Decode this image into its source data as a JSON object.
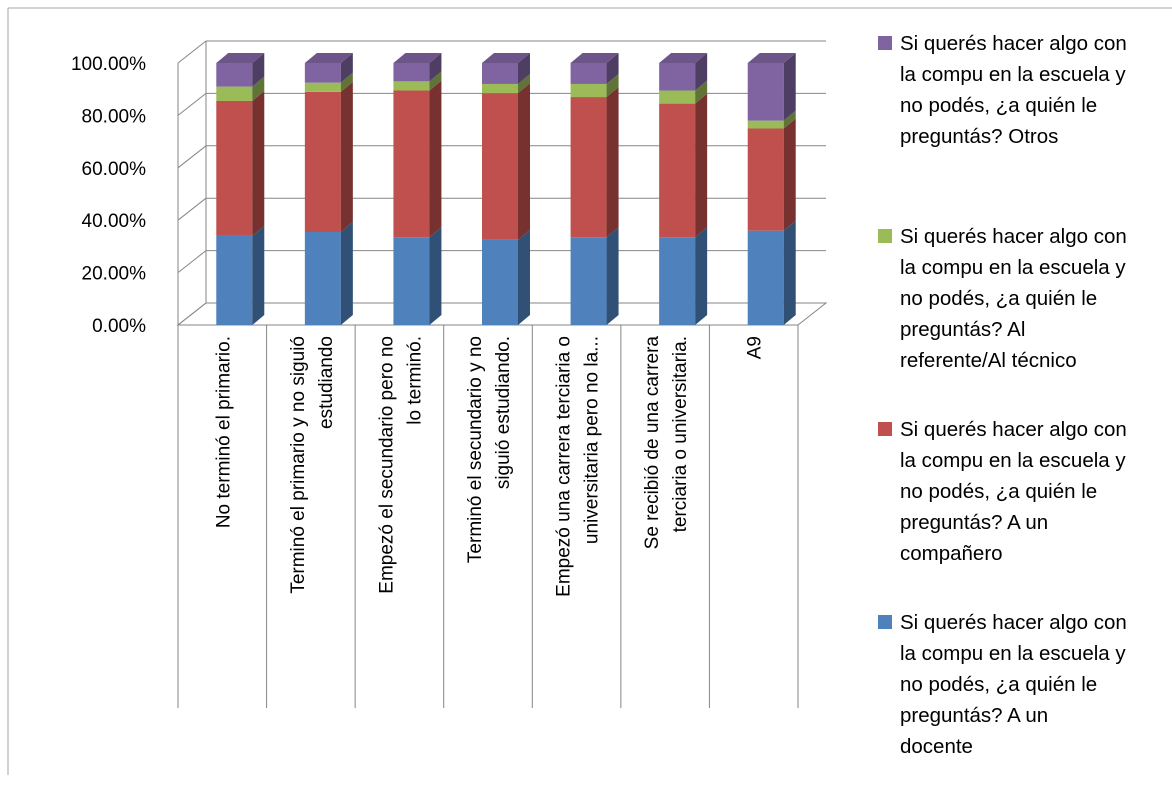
{
  "chart_data": {
    "type": "bar",
    "stacked": true,
    "three_d": true,
    "categories": [
      "No terminó el primario.",
      "Terminó el primario y no siguió estudiando",
      "Empezó el secundario pero no lo terminó.",
      "Terminó el secundario y no siguió estudiando.",
      "Empezó una carrera terciaria o universitaria pero no la...",
      "Se recibió de una carrera terciaria o universitaria.",
      "A9"
    ],
    "category_lines": [
      [
        "No terminó el primario."
      ],
      [
        "Terminó el primario y no siguió",
        "estudiando"
      ],
      [
        "Empezó el secundario pero no",
        "lo terminó."
      ],
      [
        "Terminó el secundario y no",
        "siguió estudiando."
      ],
      [
        "Empezó una carrera terciaria o",
        "universitaria pero no la..."
      ],
      [
        "Se recibió de una carrera",
        "terciaria o universitaria."
      ],
      [
        "A9"
      ]
    ],
    "series": [
      {
        "name": "Si querés hacer algo con la compu en la escuela y no podés, ¿a quién le preguntás? A un docente",
        "color": "#4f81bd",
        "values": [
          0.34,
          0.355,
          0.335,
          0.325,
          0.335,
          0.335,
          0.36
        ]
      },
      {
        "name": "Si querés hacer algo con la compu en la escuela y no podés, ¿a quién le preguntás? A un compañero",
        "color": "#c0504d",
        "values": [
          0.515,
          0.535,
          0.56,
          0.56,
          0.535,
          0.51,
          0.39
        ]
      },
      {
        "name": "Si querés hacer algo con la compu en la escuela y no podés, ¿a quién le preguntás? Al referente/Al técnico",
        "color": "#9bbb59",
        "values": [
          0.055,
          0.035,
          0.035,
          0.035,
          0.05,
          0.05,
          0.03
        ]
      },
      {
        "name": "Si querés hacer algo con la compu en la escuela y no podés, ¿a quién le preguntás? Otros",
        "color": "#8064a2",
        "values": [
          0.09,
          0.075,
          0.07,
          0.08,
          0.08,
          0.105,
          0.22
        ]
      }
    ],
    "legend_lines": [
      [
        "Si querés hacer algo con",
        "la compu en la escuela y",
        "no podés, ¿a quién le",
        "preguntás? Otros"
      ],
      [
        "Si querés hacer algo con",
        "la compu en la escuela y",
        "no podés, ¿a quién le",
        "preguntás? Al",
        "referente/Al técnico"
      ],
      [
        "Si querés hacer algo con",
        "la compu en la escuela y",
        "no podés, ¿a quién le",
        "preguntás? A un",
        "compañero"
      ],
      [
        "Si querés hacer algo con",
        "la compu en la escuela y",
        "no podés, ¿a quién le",
        "preguntás? A un",
        "docente"
      ]
    ],
    "y_ticks": [
      "0.00%",
      "20.00%",
      "40.00%",
      "60.00%",
      "80.00%",
      "100.00%"
    ],
    "ylim": [
      0,
      1
    ],
    "grid": true,
    "legend_position": "right",
    "title": "",
    "xlabel": "",
    "ylabel": ""
  }
}
